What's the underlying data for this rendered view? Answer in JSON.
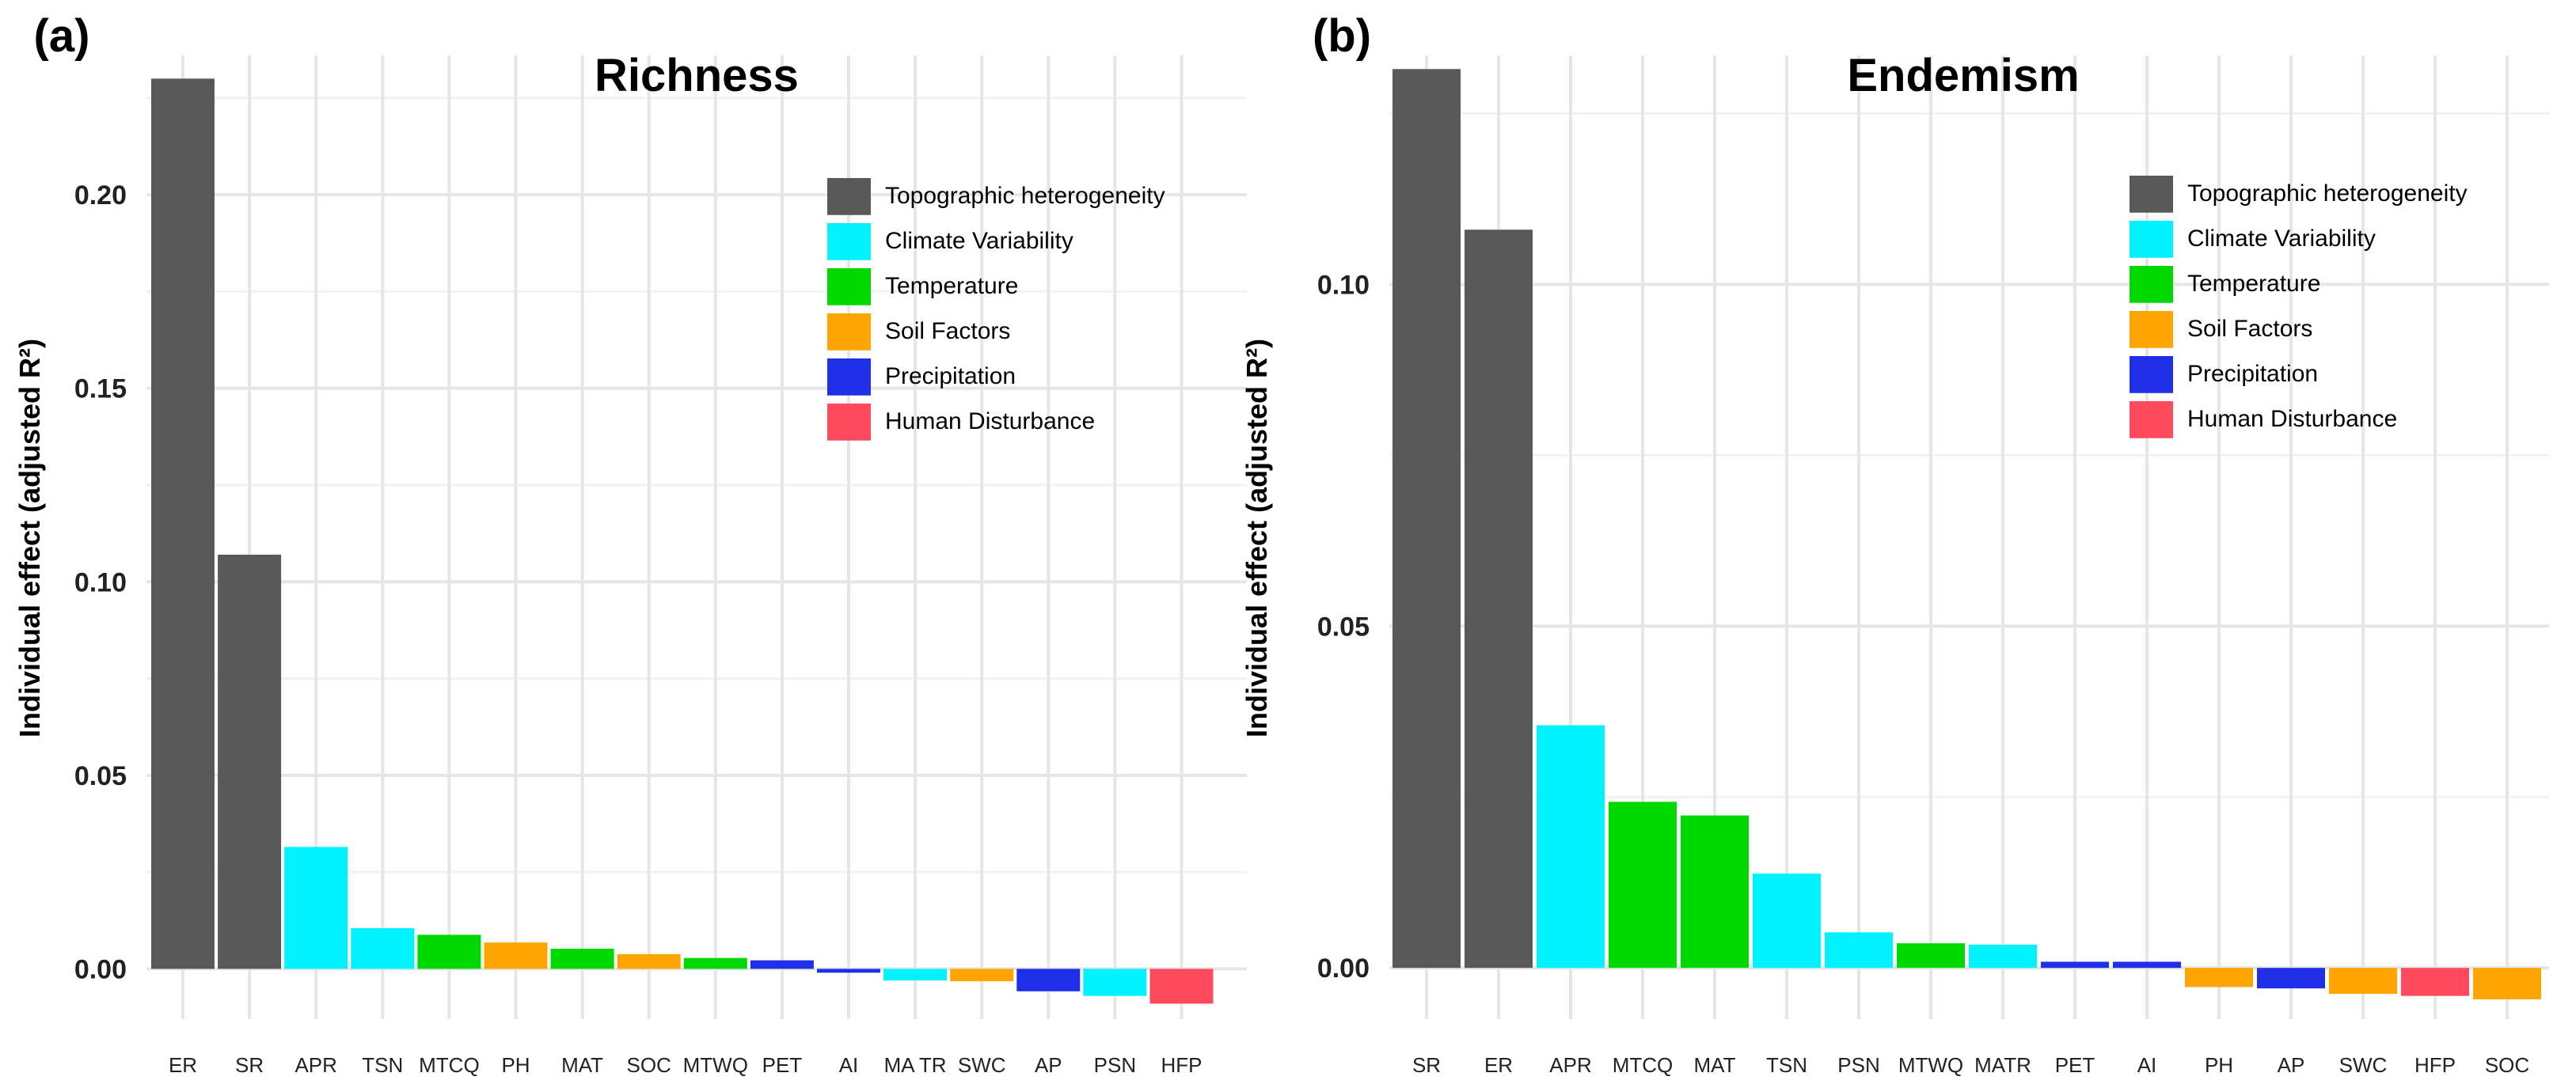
{
  "colors": {
    "Topographic heterogeneity": "#595959",
    "Climate Variability": "#00F2FF",
    "Temperature": "#00D900",
    "Soil Factors": "#FFA500",
    "Precipitation": "#1F2FE8",
    "Human Disturbance": "#FF4A5E"
  },
  "chart_data": [
    {
      "type": "bar",
      "panel_label": "(a)",
      "title": "Richness",
      "ylabel": "Individual effect (adjusted R²)",
      "xlabel": "",
      "ylim": [
        -0.013,
        0.236
      ],
      "yticks": [
        "0.00",
        "0.05",
        "0.10",
        "0.15",
        "0.20"
      ],
      "grid": true,
      "legend_position": "top-right",
      "legend": [
        "Topographic heterogeneity",
        "Climate Variability",
        "Temperature",
        "Soil Factors",
        "Precipitation",
        "Human Disturbance"
      ],
      "legend_labels": [
        "Topographic heterogeneity",
        "Climate  Variability",
        "Temperature",
        "Soil Factors",
        "Precipitation",
        "Human  Disturbance"
      ],
      "categories": [
        "ER",
        "SR",
        "APR",
        "TSN",
        "MTCQ",
        "PH",
        "MAT",
        "SOC",
        "MTWQ",
        "PET",
        "AI",
        "MATR",
        "SWC",
        "AP",
        "PSN",
        "HFP"
      ],
      "tick_labels": [
        "ER",
        "SR",
        "APR",
        "TSN",
        "MTCQ",
        "PH",
        "MAT",
        "SOC",
        "MTWQ",
        "PET",
        "AI",
        "MA TR",
        "SWC",
        "AP",
        "PSN",
        "HFP"
      ],
      "groups": [
        "Topographic heterogeneity",
        "Topographic heterogeneity",
        "Climate Variability",
        "Climate Variability",
        "Temperature",
        "Soil Factors",
        "Temperature",
        "Soil Factors",
        "Temperature",
        "Precipitation",
        "Precipitation",
        "Climate Variability",
        "Soil Factors",
        "Precipitation",
        "Climate Variability",
        "Human Disturbance"
      ],
      "values": [
        0.23,
        0.107,
        0.0315,
        0.0105,
        0.0088,
        0.0068,
        0.0052,
        0.0038,
        0.0028,
        0.0022,
        -0.001,
        -0.003,
        -0.0032,
        -0.0058,
        -0.007,
        -0.009
      ]
    },
    {
      "type": "bar",
      "panel_label": "(b)",
      "title": "Endemism",
      "ylabel": "Individual effect (adjusted R²)",
      "xlabel": "",
      "ylim": [
        -0.0075,
        0.1335
      ],
      "yticks": [
        "0.00",
        "0.05",
        "0.10"
      ],
      "grid": true,
      "legend_position": "top-right",
      "legend": [
        "Topographic heterogeneity",
        "Climate Variability",
        "Temperature",
        "Soil Factors",
        "Precipitation",
        "Human Disturbance"
      ],
      "legend_labels": [
        "Topographic heterogeneity",
        "Climate  Variability",
        "Temperature",
        "Soil Factors",
        "Precipitation",
        "Human  Disturbance"
      ],
      "categories": [
        "SR",
        "ER",
        "APR",
        "MTCQ",
        "MAT",
        "TSN",
        "PSN",
        "MTWQ",
        "MATR",
        "PET",
        "AI",
        "PH",
        "AP",
        "SWC",
        "HFP",
        "SOC"
      ],
      "tick_labels": [
        "SR",
        "ER",
        "APR",
        "MTCQ",
        "MAT",
        "TSN",
        "PSN",
        "MTWQ",
        "MATR",
        "PET",
        "AI",
        "PH",
        "AP",
        "SWC",
        "HFP",
        "SOC"
      ],
      "groups": [
        "Topographic heterogeneity",
        "Topographic heterogeneity",
        "Climate Variability",
        "Temperature",
        "Temperature",
        "Climate Variability",
        "Climate Variability",
        "Temperature",
        "Climate Variability",
        "Precipitation",
        "Precipitation",
        "Soil Factors",
        "Precipitation",
        "Soil Factors",
        "Human Disturbance",
        "Soil Factors"
      ],
      "values": [
        0.1315,
        0.108,
        0.0355,
        0.0243,
        0.0223,
        0.0138,
        0.0052,
        0.0036,
        0.0034,
        0.0009,
        0.0009,
        -0.0028,
        -0.003,
        -0.0038,
        -0.0041,
        -0.0046
      ]
    }
  ]
}
